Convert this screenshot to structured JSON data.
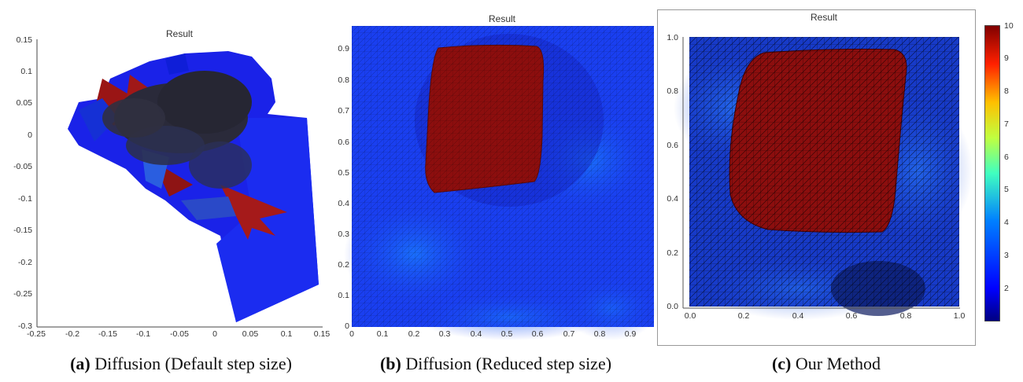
{
  "panels": [
    {
      "title": "Result",
      "yticks": [
        "0.15",
        "0.1",
        "0.05",
        "0",
        "-0.05",
        "-0.1",
        "-0.15",
        "-0.2",
        "-0.25",
        "-0.3"
      ],
      "xticks": [
        "-0.25",
        "-0.2",
        "-0.15",
        "-0.1",
        "-0.05",
        "0",
        "0.05",
        "0.1",
        "0.15"
      ],
      "caption_label": "(a)",
      "caption_text": "Diffusion (Default step size)"
    },
    {
      "title": "Result",
      "yticks": [
        "0.9",
        "0.8",
        "0.7",
        "0.6",
        "0.5",
        "0.4",
        "0.3",
        "0.2",
        "0.1",
        "0"
      ],
      "xticks": [
        "0",
        "0.1",
        "0.2",
        "0.3",
        "0.4",
        "0.5",
        "0.6",
        "0.7",
        "0.8",
        "0.9"
      ],
      "caption_label": "(b)",
      "caption_text": "Diffusion (Reduced step size)"
    },
    {
      "title": "Result",
      "yticks": [
        "1.0",
        "0.8",
        "0.6",
        "0.4",
        "0.2",
        "0.0"
      ],
      "xticks": [
        "0.0",
        "0.2",
        "0.4",
        "0.6",
        "0.8",
        "1.0"
      ],
      "caption_label": "(c)",
      "caption_text": "Our Method"
    }
  ],
  "colorbar": {
    "ticks": [
      "10",
      "9",
      "8",
      "7",
      "6",
      "5",
      "4",
      "3",
      "2"
    ],
    "colors": [
      "#00007f",
      "#0000ff",
      "#007fff",
      "#00ffff",
      "#7fff7f",
      "#ffff00",
      "#ff7f00",
      "#ff0000",
      "#7f0000"
    ]
  },
  "chart_data": [
    {
      "type": "mesh-plot",
      "title": "Result",
      "xlim": [
        -0.25,
        0.15
      ],
      "ylim": [
        -0.3,
        0.15
      ],
      "description_values": "collapsed mesh, values 1-10 (mostly low=blue with some high=red triangles)"
    },
    {
      "type": "mesh-plot",
      "title": "Result",
      "xlim": [
        0,
        0.97
      ],
      "ylim": [
        0,
        0.97
      ],
      "high_region_value": 10,
      "background_value": 2
    },
    {
      "type": "mesh-plot",
      "title": "Result",
      "xlim": [
        0,
        1.0
      ],
      "ylim": [
        0,
        1.0
      ],
      "high_region_value": 10,
      "background_value": 1.5,
      "colorbar_range": [
        1,
        10
      ]
    }
  ]
}
